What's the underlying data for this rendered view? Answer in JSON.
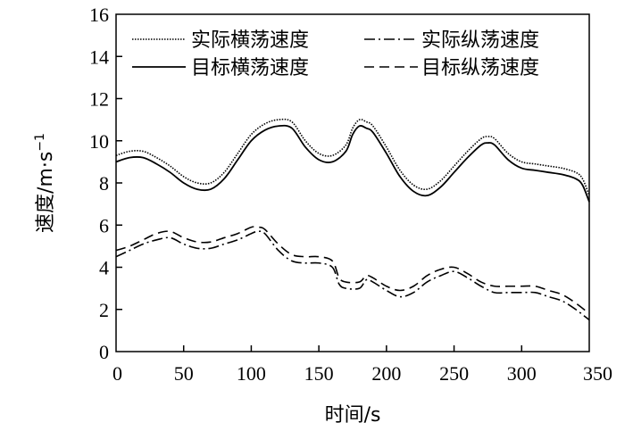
{
  "chart_data": {
    "type": "line",
    "title": "",
    "xlabel": "时间/s",
    "ylabel": "速度/m·s",
    "ylabel_exponent": "−1",
    "xlim": [
      0,
      350
    ],
    "ylim": [
      0,
      16
    ],
    "xticks": [
      0,
      50,
      100,
      150,
      200,
      250,
      300,
      350
    ],
    "yticks": [
      0,
      2,
      4,
      6,
      8,
      10,
      12,
      14,
      16
    ],
    "grid": false,
    "legend_position": "top",
    "series": [
      {
        "name": "实际横荡速度",
        "style": "dotted",
        "x": [
          0,
          10,
          20,
          30,
          40,
          50,
          60,
          70,
          80,
          90,
          100,
          110,
          120,
          130,
          140,
          150,
          160,
          170,
          175,
          180,
          185,
          190,
          200,
          210,
          220,
          230,
          240,
          250,
          260,
          270,
          275,
          280,
          290,
          300,
          310,
          320,
          330,
          340,
          345,
          350
        ],
        "values": [
          9.3,
          9.5,
          9.5,
          9.2,
          8.8,
          8.3,
          8.0,
          8.0,
          8.5,
          9.4,
          10.3,
          10.8,
          11.0,
          10.9,
          10.0,
          9.4,
          9.3,
          9.8,
          10.6,
          11.0,
          10.9,
          10.7,
          9.7,
          8.6,
          7.9,
          7.7,
          8.1,
          8.8,
          9.5,
          10.1,
          10.2,
          10.1,
          9.4,
          9.0,
          8.9,
          8.8,
          8.7,
          8.5,
          8.2,
          7.4
        ]
      },
      {
        "name": "目标横荡速度",
        "style": "solid",
        "x": [
          0,
          10,
          20,
          30,
          40,
          50,
          60,
          70,
          80,
          90,
          100,
          110,
          120,
          130,
          140,
          150,
          160,
          170,
          175,
          180,
          185,
          190,
          200,
          210,
          220,
          230,
          240,
          250,
          260,
          270,
          275,
          280,
          290,
          300,
          310,
          320,
          330,
          340,
          345,
          350
        ],
        "values": [
          9.0,
          9.2,
          9.2,
          8.9,
          8.5,
          8.0,
          7.7,
          7.7,
          8.2,
          9.1,
          10.0,
          10.5,
          10.7,
          10.6,
          9.7,
          9.1,
          9.0,
          9.5,
          10.3,
          10.7,
          10.6,
          10.4,
          9.4,
          8.3,
          7.6,
          7.4,
          7.8,
          8.5,
          9.2,
          9.8,
          9.9,
          9.8,
          9.1,
          8.7,
          8.6,
          8.5,
          8.4,
          8.2,
          7.9,
          7.1
        ]
      },
      {
        "name": "实际纵荡速度",
        "style": "dashdot",
        "x": [
          0,
          10,
          20,
          30,
          40,
          50,
          60,
          70,
          80,
          90,
          100,
          105,
          110,
          120,
          130,
          140,
          150,
          160,
          165,
          170,
          180,
          185,
          190,
          200,
          210,
          220,
          230,
          240,
          250,
          260,
          270,
          280,
          290,
          300,
          310,
          320,
          330,
          340,
          350
        ],
        "values": [
          4.5,
          4.8,
          5.1,
          5.3,
          5.4,
          5.1,
          4.9,
          4.9,
          5.1,
          5.3,
          5.6,
          5.7,
          5.6,
          4.8,
          4.3,
          4.2,
          4.2,
          4.0,
          3.2,
          3.0,
          3.0,
          3.4,
          3.3,
          2.9,
          2.6,
          2.8,
          3.3,
          3.6,
          3.8,
          3.5,
          3.1,
          2.8,
          2.8,
          2.8,
          2.8,
          2.6,
          2.4,
          2.0,
          1.5
        ]
      },
      {
        "name": "目标纵荡速度",
        "style": "dashed",
        "x": [
          0,
          10,
          20,
          30,
          40,
          50,
          60,
          70,
          80,
          90,
          100,
          105,
          110,
          120,
          130,
          140,
          150,
          160,
          165,
          170,
          180,
          185,
          190,
          200,
          210,
          220,
          230,
          240,
          250,
          260,
          270,
          280,
          290,
          300,
          310,
          320,
          330,
          340,
          350
        ],
        "values": [
          4.8,
          5.0,
          5.3,
          5.6,
          5.7,
          5.4,
          5.2,
          5.2,
          5.4,
          5.6,
          5.9,
          5.9,
          5.8,
          5.1,
          4.6,
          4.5,
          4.5,
          4.3,
          3.5,
          3.3,
          3.3,
          3.6,
          3.5,
          3.1,
          2.9,
          3.1,
          3.6,
          3.9,
          4.0,
          3.7,
          3.3,
          3.1,
          3.1,
          3.1,
          3.1,
          2.9,
          2.7,
          2.3,
          1.8
        ]
      }
    ]
  }
}
